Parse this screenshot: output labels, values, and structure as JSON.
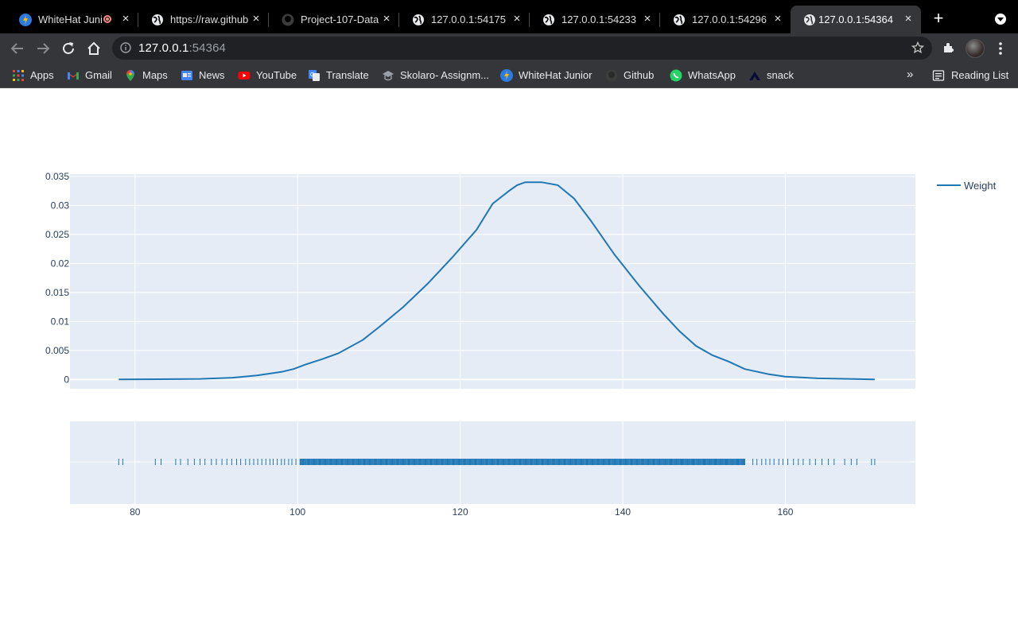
{
  "browser": {
    "tabs": [
      {
        "title": "WhiteHat Juni",
        "favicon": "whitehat-icon",
        "recording": true,
        "active": false
      },
      {
        "title": "https://raw.github",
        "favicon": "globe-icon",
        "recording": false,
        "active": false
      },
      {
        "title": "Project-107-Data",
        "favicon": "github-icon",
        "recording": false,
        "active": false
      },
      {
        "title": "127.0.0.1:54175",
        "favicon": "globe-icon",
        "recording": false,
        "active": false
      },
      {
        "title": "127.0.0.1:54233",
        "favicon": "globe-icon",
        "recording": false,
        "active": false
      },
      {
        "title": "127.0.0.1:54296",
        "favicon": "globe-icon",
        "recording": false,
        "active": false
      },
      {
        "title": "127.0.0.1:54364",
        "favicon": "globe-icon",
        "recording": false,
        "active": true
      }
    ],
    "close_glyph": "×",
    "new_tab_glyph": "+",
    "address": {
      "host": "127.0.0.1",
      "port": ":54364"
    },
    "bookmarks": [
      {
        "label": "Apps",
        "icon": "apps-grid-icon"
      },
      {
        "label": "Gmail",
        "icon": "gmail-icon"
      },
      {
        "label": "Maps",
        "icon": "maps-icon"
      },
      {
        "label": "News",
        "icon": "news-icon"
      },
      {
        "label": "YouTube",
        "icon": "youtube-icon"
      },
      {
        "label": "Translate",
        "icon": "translate-icon"
      },
      {
        "label": "Skolaro- Assignm...",
        "icon": "skolaro-icon"
      },
      {
        "label": "WhiteHat Junior",
        "icon": "whitehat-icon"
      },
      {
        "label": "Github",
        "icon": "github-icon"
      },
      {
        "label": "WhatsApp",
        "icon": "whatsapp-icon"
      },
      {
        "label": "snack",
        "icon": "snack-icon"
      }
    ],
    "bookmarks_overflow": "»",
    "reading_list": "Reading List"
  },
  "chart_data": {
    "type": "line",
    "title": "",
    "xlabel": "",
    "ylabel": "",
    "xlim": [
      72,
      176
    ],
    "ylim": [
      -0.0016,
      0.0354
    ],
    "x_ticks": [
      80,
      100,
      120,
      140,
      160
    ],
    "y_ticks": [
      0,
      0.005,
      0.01,
      0.015,
      0.02,
      0.025,
      0.03,
      0.035
    ],
    "x_tick_labels": [
      "80",
      "100",
      "120",
      "140",
      "160"
    ],
    "y_tick_labels": [
      "0",
      "0.005",
      "0.01",
      "0.015",
      "0.02",
      "0.025",
      "0.03",
      "0.035"
    ],
    "legend": {
      "position": "top-right outside plot"
    },
    "colors": {
      "line": "#1f77b4",
      "plot_bg": "#e5ecf6",
      "grid": "#ffffff",
      "tick_text": "#2a3f5f"
    },
    "series": [
      {
        "name": "Weight",
        "x": [
          78,
          83,
          88,
          92,
          95,
          98,
          99.5,
          101,
          103,
          105,
          108,
          110,
          113,
          116,
          119,
          122,
          124,
          126,
          127,
          128,
          130,
          132,
          134,
          136,
          139,
          142,
          145,
          147,
          149,
          151,
          153,
          155,
          158,
          160,
          164,
          171
        ],
        "y": [
          0.0,
          5e-05,
          0.0001,
          0.0003,
          0.0007,
          0.0013,
          0.0018,
          0.0026,
          0.0035,
          0.0045,
          0.0068,
          0.009,
          0.0125,
          0.0165,
          0.021,
          0.0258,
          0.0303,
          0.0325,
          0.0335,
          0.034,
          0.034,
          0.0335,
          0.0312,
          0.0275,
          0.0215,
          0.0162,
          0.0113,
          0.0083,
          0.0058,
          0.0042,
          0.0031,
          0.0018,
          0.0009,
          0.0005,
          0.0002,
          0.0
        ]
      }
    ],
    "rug": {
      "values": [
        78,
        78.5,
        82.5,
        83.2,
        85,
        85.6,
        86.5,
        87.3,
        88,
        88.6,
        89.4,
        90,
        90.7,
        91.3,
        91.9,
        92.5,
        93,
        93.6,
        94.1,
        94.6,
        95.1,
        95.6,
        96.1,
        96.6,
        97,
        97.5,
        98,
        98.4,
        98.9,
        99.3,
        99.8,
        100.3,
        155,
        156,
        156.5,
        157.1,
        157.6,
        158.1,
        158.6,
        159.2,
        159.7,
        160.3,
        161,
        161.6,
        162.2,
        163,
        163.7,
        164.5,
        165.3,
        166,
        167.3,
        168.1,
        168.8,
        170.6,
        171
      ],
      "dense_range": [
        100.3,
        155
      ],
      "dense_count": 600
    }
  }
}
